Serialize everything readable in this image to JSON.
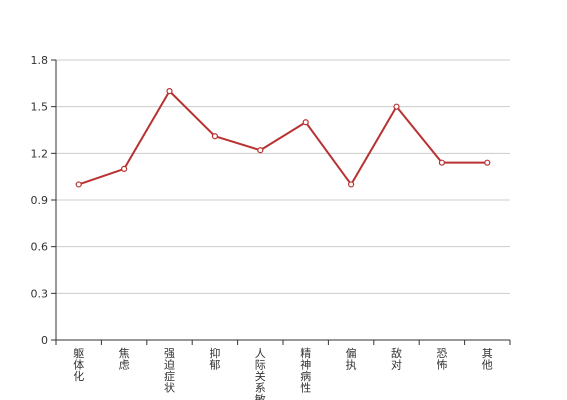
{
  "chart_data": {
    "type": "line",
    "categories": [
      "躯体化",
      "焦虑",
      "强迫症状",
      "抑郁",
      "人际关系敏感",
      "精神病性",
      "偏执",
      "敌对",
      "恐怖",
      "其他"
    ],
    "series": [
      {
        "values": [
          1.0,
          1.1,
          1.6,
          1.31,
          1.22,
          1.4,
          1.0,
          1.5,
          1.14,
          1.14
        ]
      }
    ],
    "ylim": [
      0,
      1.8
    ],
    "yticks": [
      0,
      0.3,
      0.6,
      0.9,
      1.2,
      1.5,
      1.8
    ],
    "grid": true,
    "legend": "none",
    "colors": {
      "line": "#b83232",
      "grid": "#cccccc",
      "axis": "#333333"
    }
  }
}
